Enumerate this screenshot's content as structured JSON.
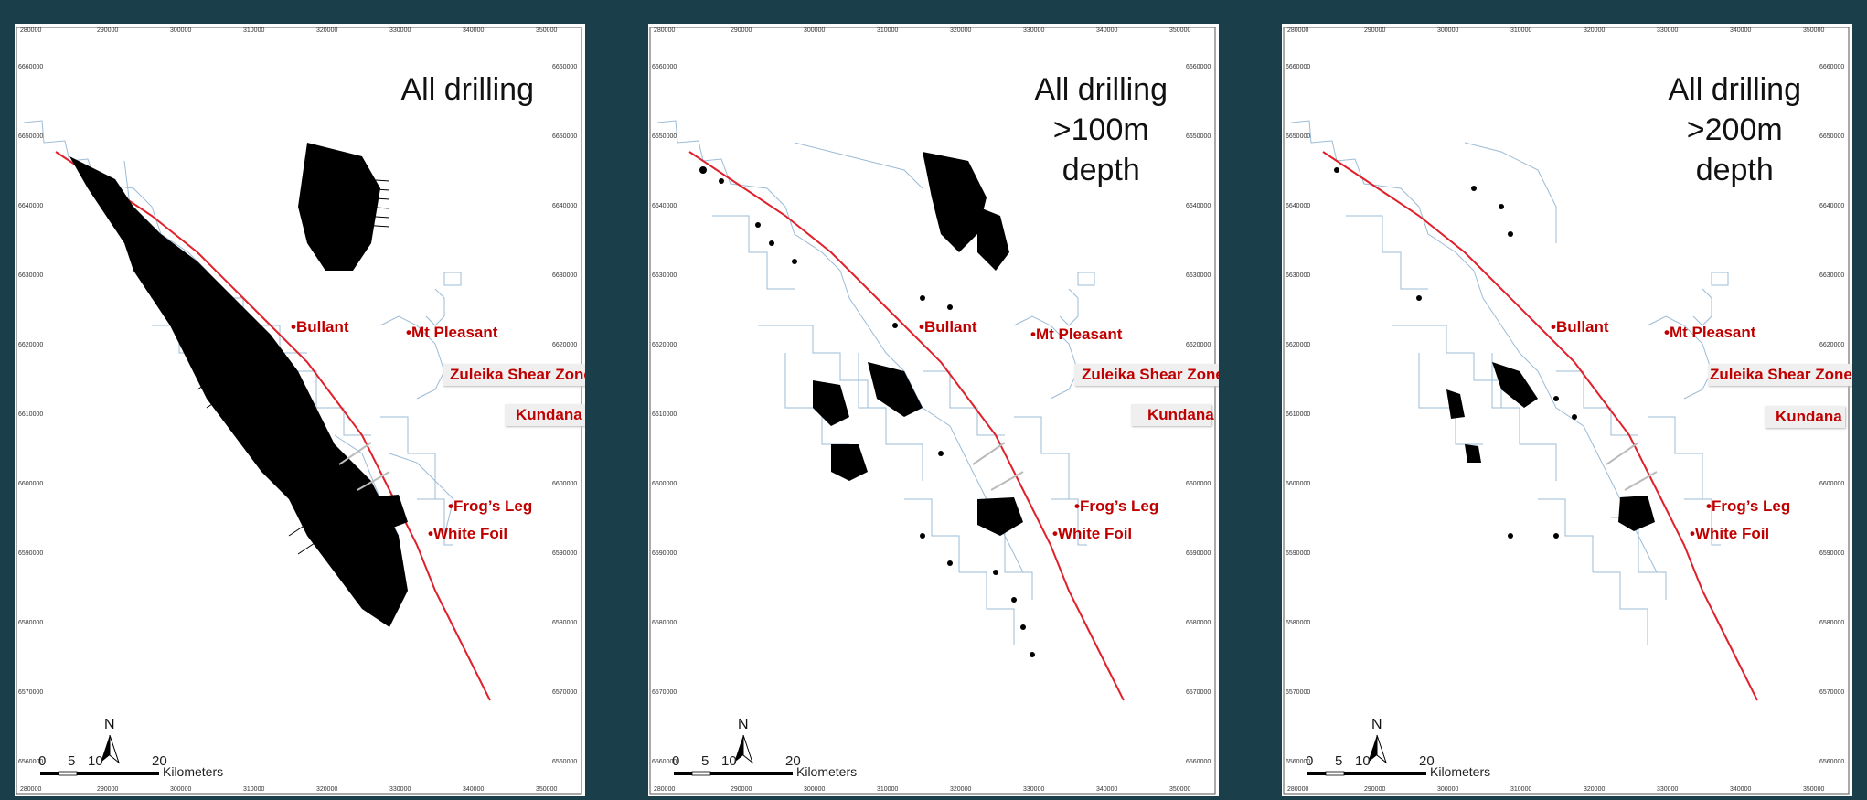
{
  "panels": [
    {
      "title_lines": [
        "All drilling"
      ]
    },
    {
      "title_lines": [
        "All drilling",
        ">100m",
        "depth"
      ]
    },
    {
      "title_lines": [
        "All drilling",
        ">200m",
        "depth"
      ]
    }
  ],
  "top_ticks": [
    "280000",
    "290000",
    "300000",
    "310000",
    "320000",
    "330000",
    "340000",
    "350000"
  ],
  "bottom_ticks": [
    "280000",
    "290000",
    "300000",
    "310000",
    "320000",
    "330000",
    "340000",
    "350000"
  ],
  "side_ticks": [
    "6660000",
    "6650000",
    "6640000",
    "6630000",
    "6620000",
    "6610000",
    "6600000",
    "6590000",
    "6580000",
    "6570000",
    "6560000"
  ],
  "places": {
    "bullant": "•Bullant",
    "mt_pleasant": "•Mt Pleasant",
    "zuleika": "Zuleika Shear Zone",
    "kundana": "Kundana",
    "frogs_leg": "•Frog’s Leg",
    "white_foil": "•White Foil"
  },
  "scale_bar": {
    "labels": [
      "0",
      "5",
      "10",
      "20"
    ],
    "unit": "Kilometers"
  },
  "north_label": "N",
  "colors": {
    "background": "#1a3f4a",
    "shear_zone": "#e0202a",
    "tenements": "#9bbbd6",
    "drilling": "#000000",
    "place_labels": "#c00000"
  }
}
